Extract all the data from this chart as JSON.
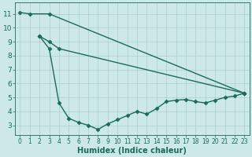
{
  "line1": {
    "x": [
      0,
      1,
      3,
      23
    ],
    "y": [
      11.1,
      11.0,
      11.0,
      5.3
    ]
  },
  "line2": {
    "x": [
      2,
      3,
      4,
      23
    ],
    "y": [
      9.4,
      9.0,
      8.5,
      5.3
    ]
  },
  "line3": {
    "x": [
      2,
      3,
      4,
      5,
      6,
      7,
      8,
      9,
      10,
      11,
      12,
      13,
      14,
      15,
      16,
      17,
      18,
      19,
      20,
      21,
      22,
      23
    ],
    "y": [
      9.4,
      8.5,
      4.6,
      3.5,
      3.2,
      3.0,
      2.7,
      3.1,
      3.4,
      3.7,
      4.0,
      3.8,
      4.2,
      4.7,
      4.8,
      4.85,
      4.7,
      4.6,
      4.8,
      5.0,
      5.1,
      5.3
    ]
  },
  "xlim": [
    -0.5,
    23.5
  ],
  "ylim": [
    2.3,
    11.8
  ],
  "xtick_vals": [
    0,
    1,
    2,
    3,
    4,
    5,
    6,
    7,
    8,
    9,
    10,
    11,
    12,
    13,
    14,
    15,
    16,
    17,
    18,
    19,
    20,
    21,
    22,
    23
  ],
  "xtick_labels": [
    "0",
    "1",
    "2",
    "3",
    "4",
    "5",
    "6",
    "7",
    "8",
    "9",
    "10",
    "11",
    "12",
    "13",
    "14",
    "15",
    "16",
    "17",
    "18",
    "19",
    "20",
    "21",
    "22",
    "23"
  ],
  "ytick_vals": [
    3,
    4,
    5,
    6,
    7,
    8,
    9,
    10,
    11
  ],
  "ytick_labels": [
    "3",
    "4",
    "5",
    "6",
    "7",
    "8",
    "9",
    "10",
    "11"
  ],
  "xlabel": "Humidex (Indice chaleur)",
  "bg_color": "#cce8e8",
  "grid_color": "#aacfcf",
  "line_color": "#1a6b5a",
  "tick_color": "#1a6b5a",
  "label_color": "#1a6b5a",
  "linewidth": 1.0,
  "markersize": 2.5
}
